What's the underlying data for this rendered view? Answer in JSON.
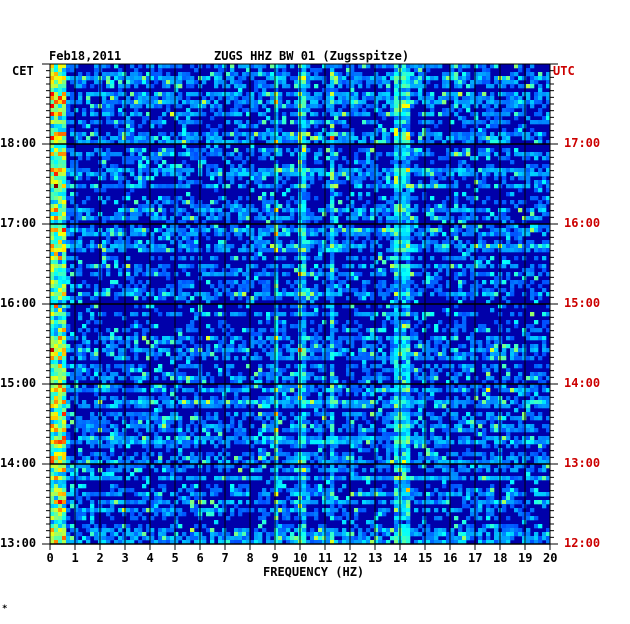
{
  "header": {
    "date": "Feb18,2011",
    "station": "ZUGS HHZ BW 01 (Zugsspitze)"
  },
  "left_axis_title": "CET",
  "right_axis_title": "UTC",
  "footer_mark": "*",
  "colors": {
    "background": "#0000aa",
    "utc_text": "#cc0000"
  },
  "chart_data": {
    "type": "heatmap",
    "title": "ZUGS HHZ BW 01 (Zugsspitze)",
    "xlabel": "FREQUENCY (HZ)",
    "xlim": [
      0,
      20
    ],
    "x_ticks": [
      "0",
      "1",
      "2",
      "3",
      "4",
      "5",
      "6",
      "7",
      "8",
      "9",
      "10",
      "11",
      "12",
      "13",
      "14",
      "15",
      "16",
      "17",
      "18",
      "19",
      "20"
    ],
    "y_cet_ticks": [
      {
        "label": "18:00",
        "value": 18
      },
      {
        "label": "17:00",
        "value": 17
      },
      {
        "label": "16:00",
        "value": 16
      },
      {
        "label": "15:00",
        "value": 15
      },
      {
        "label": "14:00",
        "value": 14
      },
      {
        "label": "13:00",
        "value": 13
      }
    ],
    "y_utc_ticks": [
      {
        "label": "17:00",
        "value": 18
      },
      {
        "label": "16:00",
        "value": 17
      },
      {
        "label": "15:00",
        "value": 16
      },
      {
        "label": "14:00",
        "value": 15
      },
      {
        "label": "13:00",
        "value": 14
      },
      {
        "label": "12:00",
        "value": 13
      }
    ],
    "ylim_cet": [
      13,
      19
    ],
    "grid": true,
    "colormap": "jet",
    "features": [
      {
        "freq": [
          0,
          0.7
        ],
        "level": "high"
      },
      {
        "freq": [
          9,
          9.2
        ],
        "level": "medium"
      },
      {
        "freq": [
          10,
          10.3
        ],
        "level": "medium"
      },
      {
        "freq": [
          11.2,
          11.4
        ],
        "level": "medium"
      },
      {
        "freq": [
          13.8,
          14.4
        ],
        "level": "medium"
      }
    ]
  }
}
